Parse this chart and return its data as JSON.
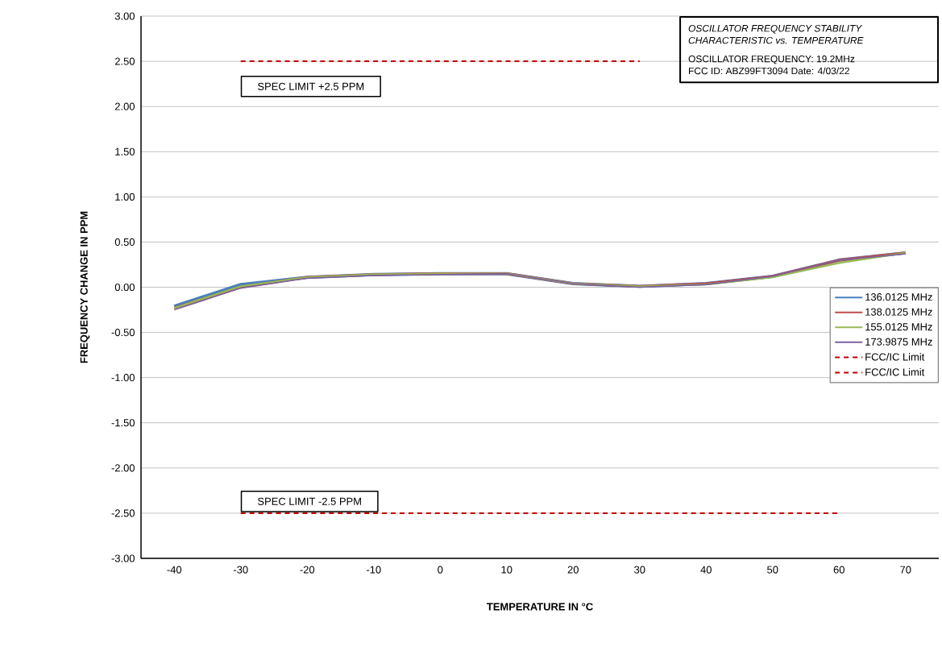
{
  "chart_data": {
    "type": "line",
    "title": "OSCILLATOR FREQUENCY STABILITY CHARACTERISTIC vs. TEMPERATURE",
    "xlabel": "TEMPERATURE IN °C",
    "ylabel": "FREQUENCY CHANGE IN PPM",
    "categories": [
      "-40",
      "-30",
      "-20",
      "-10",
      "0",
      "10",
      "20",
      "30",
      "40",
      "50",
      "60",
      "70"
    ],
    "series": [
      {
        "name": "136.0125 MHz",
        "color": "#4a7ebb",
        "values": [
          -0.21,
          0.03,
          0.11,
          0.14,
          0.15,
          0.15,
          0.04,
          0.01,
          0.04,
          0.12,
          0.3,
          0.38
        ]
      },
      {
        "name": "138.0125 MHz",
        "color": "#be4b48",
        "values": [
          -0.23,
          0.0,
          0.11,
          0.14,
          0.15,
          0.15,
          0.04,
          0.01,
          0.04,
          0.12,
          0.3,
          0.38
        ]
      },
      {
        "name": "155.0125 MHz",
        "color": "#98b954",
        "values": [
          -0.23,
          0.01,
          0.11,
          0.14,
          0.15,
          0.15,
          0.04,
          0.01,
          0.03,
          0.11,
          0.27,
          0.38
        ]
      },
      {
        "name": "173.9875 MHz",
        "color": "#7d60a0",
        "values": [
          -0.25,
          -0.01,
          0.1,
          0.13,
          0.14,
          0.15,
          0.04,
          0.0,
          0.03,
          0.12,
          0.3,
          0.37
        ]
      },
      {
        "name": "FCC/IC Limit",
        "color": "#c00000",
        "line_style": "dashed",
        "values": [
          null,
          2.5,
          2.5,
          2.5,
          2.5,
          2.5,
          2.5,
          2.5,
          null,
          null,
          null,
          null
        ]
      },
      {
        "name": "FCC/IC Limit",
        "color": "#c00000",
        "line_style": "dashed",
        "values": [
          null,
          -2.5,
          -2.5,
          -2.5,
          -2.5,
          -2.5,
          -2.5,
          -2.5,
          -2.5,
          -2.5,
          -2.5,
          null
        ]
      }
    ],
    "ylim": [
      -3,
      3
    ],
    "yticks": [
      {
        "value": -3,
        "label": "-3.00"
      },
      {
        "value": -2.5,
        "label": "-2.50"
      },
      {
        "value": -2,
        "label": "-2.00"
      },
      {
        "value": -1.5,
        "label": "-1.50"
      },
      {
        "value": -1,
        "label": "-1.00"
      },
      {
        "value": -0.5,
        "label": "-0.50"
      },
      {
        "value": 0,
        "label": "0.00"
      },
      {
        "value": 0.5,
        "label": "0.50"
      },
      {
        "value": 1,
        "label": "1.00"
      },
      {
        "value": 1.5,
        "label": "1.50"
      },
      {
        "value": 2,
        "label": "2.00"
      },
      {
        "value": 2.5,
        "label": "2.50"
      },
      {
        "value": 3,
        "label": "3.00"
      }
    ],
    "grid": "y",
    "legend": "right",
    "marker": "none",
    "annotations": [
      {
        "text": "SPEC LIMIT +2.5 PPM",
        "x": "-30",
        "y": 2.5
      },
      {
        "text": "SPEC LIMIT -2.5 PPM",
        "x": "-30",
        "y": -2.5
      },
      "OSCILLATOR FREQUENCY:   19.2MHz",
      "FCC ID:   ABZ99FT3094     Date: 4/03/22"
    ]
  }
}
